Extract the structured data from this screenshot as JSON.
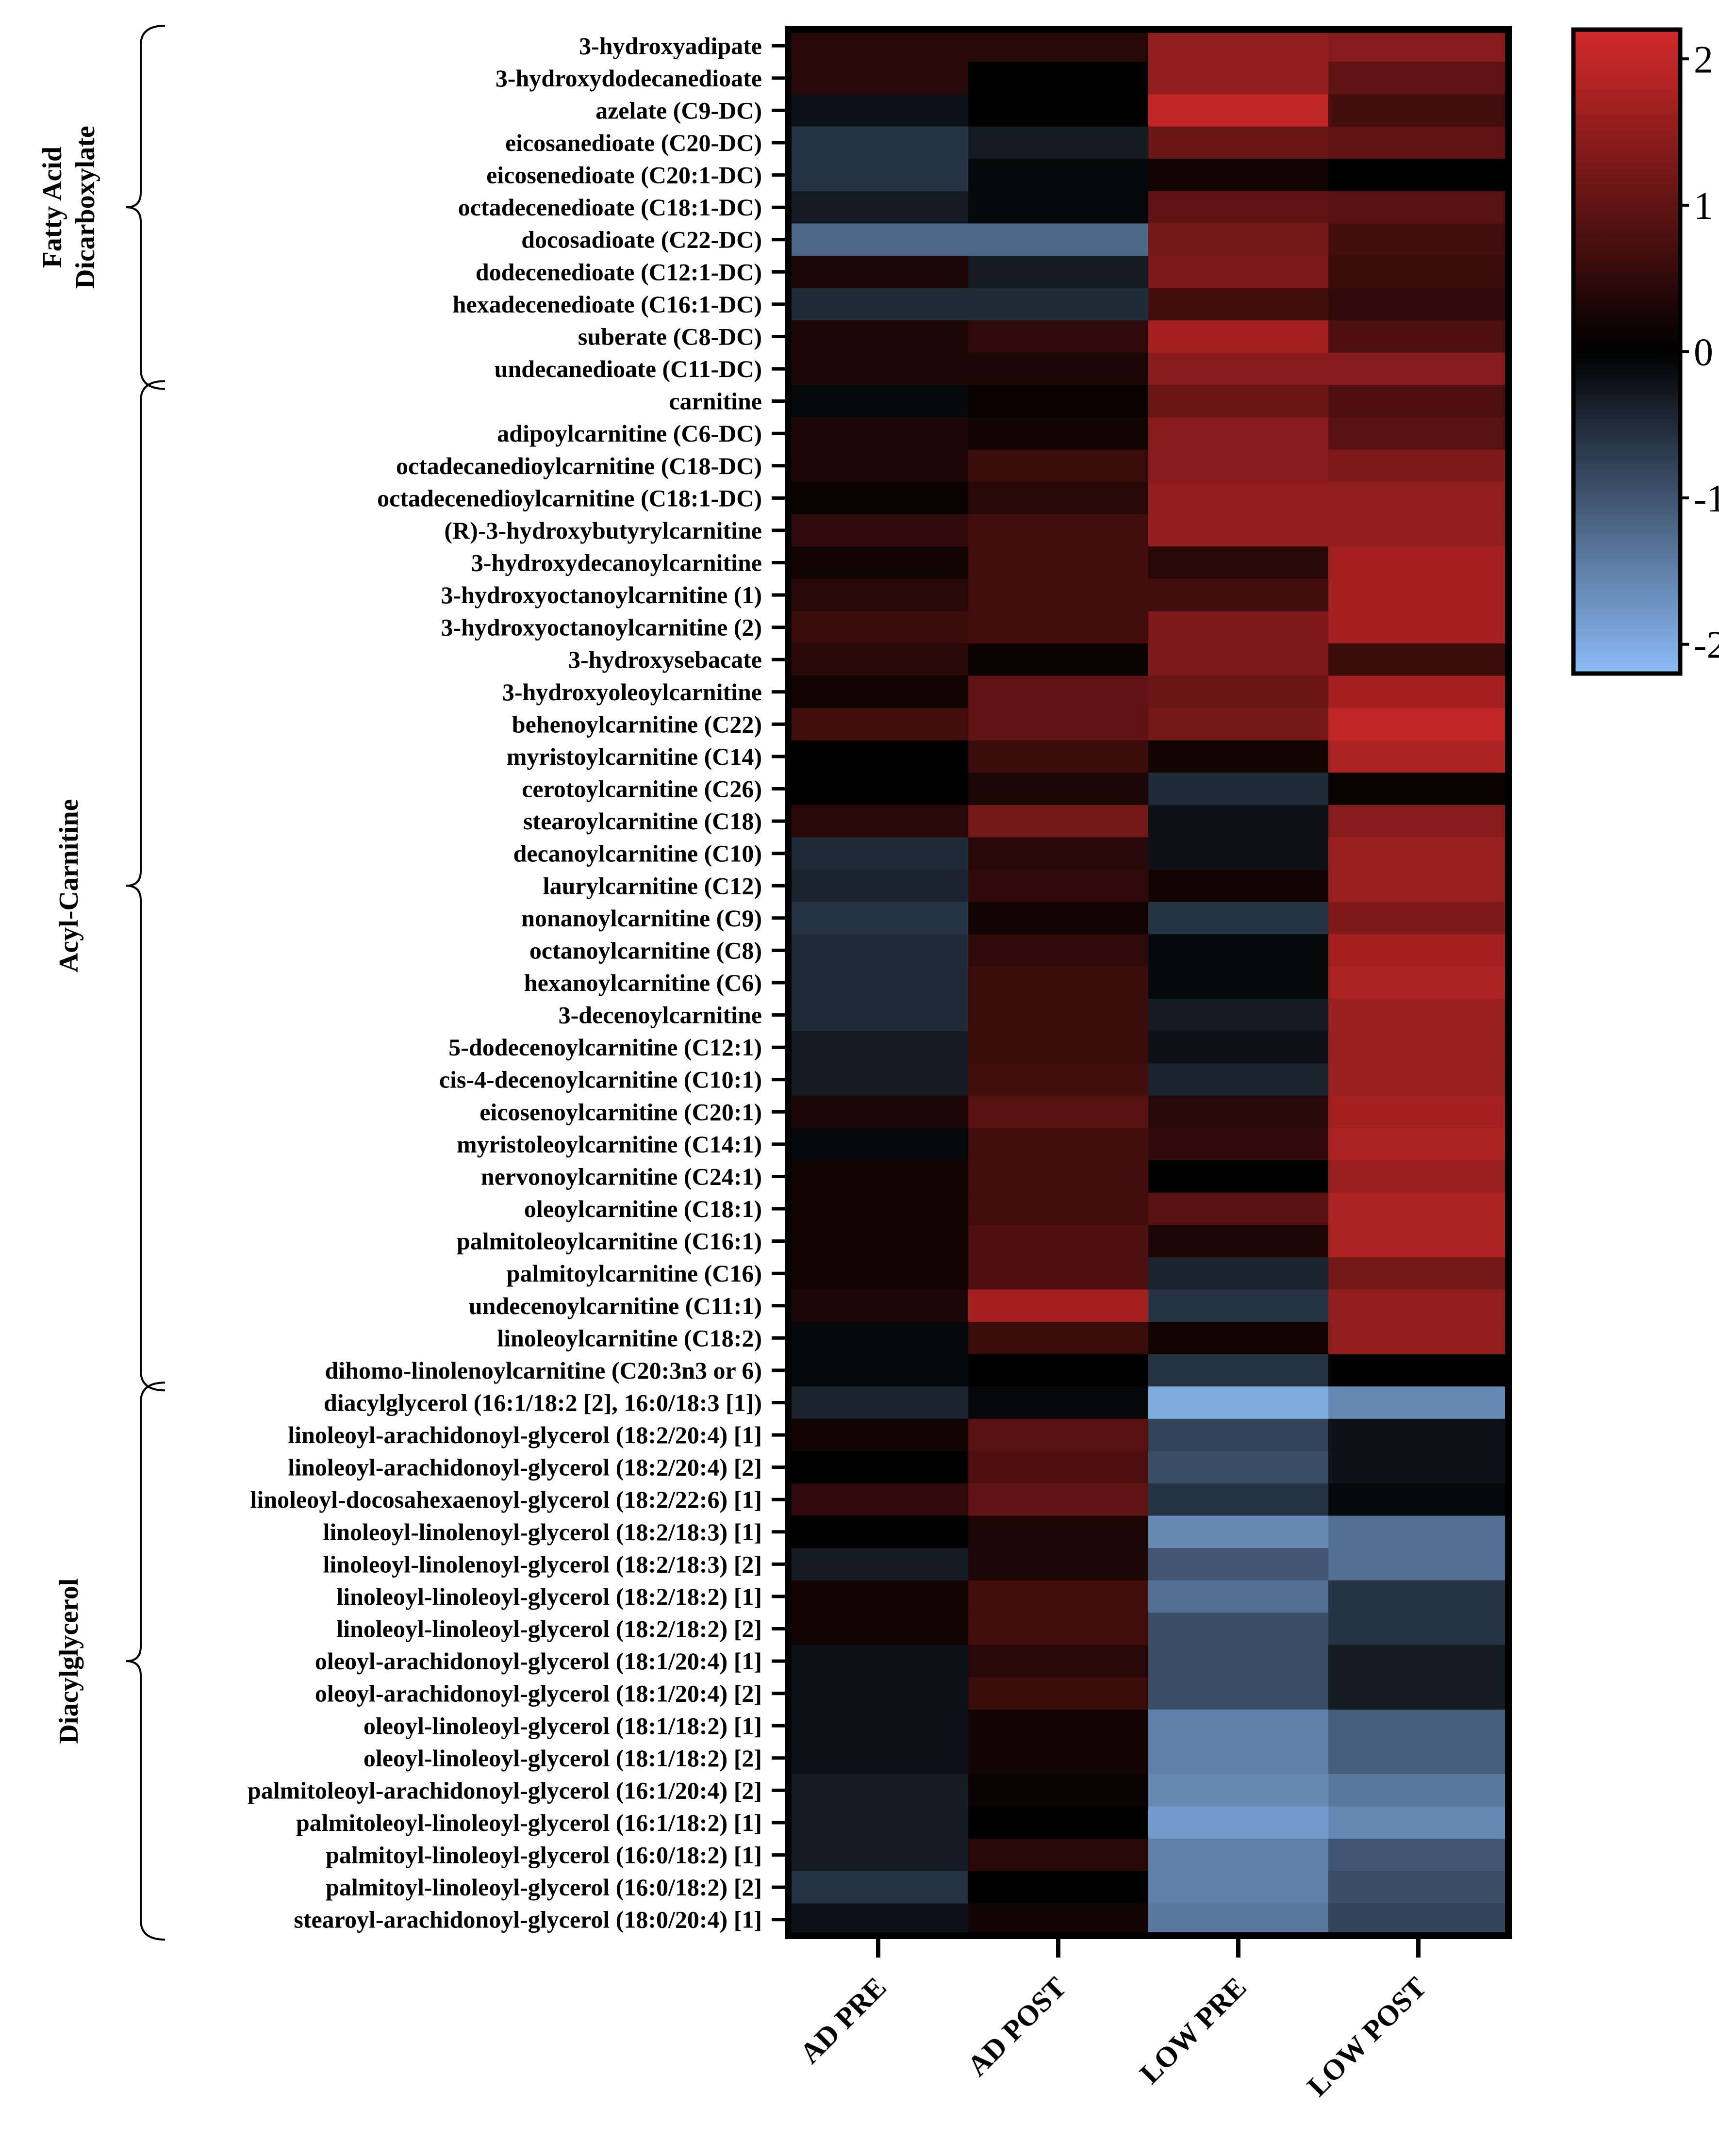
{
  "chart_data": {
    "type": "heatmap",
    "columns": [
      "AD PRE",
      "AD POST",
      "LOW PRE",
      "LOW POST"
    ],
    "rows": [
      "3-hydroxyadipate",
      "3-hydroxydodecanedioate",
      "azelate (C9-DC)",
      "eicosanedioate (C20-DC)",
      "eicosenedioate (C20:1-DC)",
      "octadecenedioate (C18:1-DC)",
      "docosadioate (C22-DC)",
      "dodecenedioate (C12:1-DC)",
      "hexadecenedioate (C16:1-DC)",
      "suberate (C8-DC)",
      "undecanedioate (C11-DC)",
      "carnitine",
      "adipoylcarnitine (C6-DC)",
      "octadecanedioylcarnitine (C18-DC)",
      "octadecenedioylcarnitine (C18:1-DC)",
      "(R)-3-hydroxybutyrylcarnitine",
      "3-hydroxydecanoylcarnitine",
      "3-hydroxyoctanoylcarnitine (1)",
      "3-hydroxyoctanoylcarnitine (2)",
      "3-hydroxysebacate",
      "3-hydroxyoleoylcarnitine",
      "behenoylcarnitine (C22)",
      "myristoylcarnitine (C14)",
      "cerotoylcarnitine (C26)",
      "stearoylcarnitine (C18)",
      "decanoylcarnitine (C10)",
      "laurylcarnitine (C12)",
      "nonanoylcarnitine (C9)",
      "octanoylcarnitine (C8)",
      "hexanoylcarnitine (C6)",
      "3-decenoylcarnitine",
      "5-dodecenoylcarnitine (C12:1)",
      "cis-4-decenoylcarnitine (C10:1)",
      "eicosenoylcarnitine (C20:1)",
      "myristoleoylcarnitine (C14:1)",
      "nervonoylcarnitine (C24:1)",
      "oleoylcarnitine (C18:1)",
      "palmitoleoylcarnitine (C16:1)",
      "palmitoylcarnitine (C16)",
      "undecenoylcarnitine (C11:1)",
      "linoleoylcarnitine (C18:2)",
      "dihomo-linolenoylcarnitine (C20:3n3 or 6)",
      "diacylglycerol (16:1/18:2 [2], 16:0/18:3 [1])",
      "linoleoyl-arachidonoyl-glycerol (18:2/20:4) [1]",
      "linoleoyl-arachidonoyl-glycerol (18:2/20:4) [2]",
      "linoleoyl-docosahexaenoyl-glycerol (18:2/22:6) [1]",
      "linoleoyl-linolenoyl-glycerol (18:2/18:3) [1]",
      "linoleoyl-linolenoyl-glycerol (18:2/18:3) [2]",
      "linoleoyl-linoleoyl-glycerol (18:2/18:2) [1]",
      "linoleoyl-linoleoyl-glycerol (18:2/18:2) [2]",
      "oleoyl-arachidonoyl-glycerol (18:1/20:4) [1]",
      "oleoyl-arachidonoyl-glycerol (18:1/20:4) [2]",
      "oleoyl-linoleoyl-glycerol (18:1/18:2) [1]",
      "oleoyl-linoleoyl-glycerol (18:1/18:2) [2]",
      "palmitoleoyl-arachidonoyl-glycerol (16:1/20:4) [2]",
      "palmitoleoyl-linoleoyl-glycerol (16:1/18:2) [1]",
      "palmitoyl-linoleoyl-glycerol (16:0/18:2) [1]",
      "palmitoyl-linoleoyl-glycerol (16:0/18:2) [2]",
      "stearoyl-arachidonoyl-glycerol (18:0/20:4) [1]"
    ],
    "values": [
      [
        0.4,
        0.4,
        1.5,
        1.4
      ],
      [
        0.4,
        0.0,
        1.5,
        1.0
      ],
      [
        -0.2,
        0.0,
        2.0,
        0.7
      ],
      [
        -0.6,
        -0.3,
        1.1,
        1.0
      ],
      [
        -0.6,
        -0.1,
        0.2,
        0.0
      ],
      [
        -0.3,
        -0.1,
        1.0,
        0.9
      ],
      [
        -1.2,
        -1.2,
        1.2,
        0.7
      ],
      [
        0.3,
        -0.3,
        1.3,
        0.6
      ],
      [
        -0.5,
        -0.5,
        0.7,
        0.5
      ],
      [
        0.3,
        0.5,
        1.7,
        0.8
      ],
      [
        0.3,
        0.3,
        1.4,
        1.4
      ],
      [
        -0.1,
        0.1,
        1.1,
        0.8
      ],
      [
        0.3,
        0.2,
        1.4,
        0.9
      ],
      [
        0.3,
        0.6,
        1.4,
        1.3
      ],
      [
        0.1,
        0.4,
        1.5,
        1.5
      ],
      [
        0.5,
        0.7,
        1.5,
        1.5
      ],
      [
        0.2,
        0.7,
        0.4,
        1.7
      ],
      [
        0.4,
        0.7,
        0.7,
        1.7
      ],
      [
        0.6,
        0.7,
        1.3,
        1.7
      ],
      [
        0.4,
        0.1,
        1.3,
        0.6
      ],
      [
        0.2,
        1.0,
        1.1,
        1.7
      ],
      [
        0.7,
        1.0,
        1.2,
        2.0
      ],
      [
        0.0,
        0.6,
        0.2,
        1.8
      ],
      [
        0.0,
        0.3,
        -0.5,
        0.1
      ],
      [
        0.4,
        1.2,
        -0.2,
        1.4
      ],
      [
        -0.5,
        0.4,
        -0.2,
        1.6
      ],
      [
        -0.4,
        0.5,
        0.2,
        1.6
      ],
      [
        -0.6,
        0.2,
        -0.6,
        1.3
      ],
      [
        -0.5,
        0.5,
        -0.1,
        1.7
      ],
      [
        -0.5,
        0.6,
        -0.1,
        1.8
      ],
      [
        -0.5,
        0.6,
        -0.3,
        1.6
      ],
      [
        -0.3,
        0.6,
        -0.2,
        1.6
      ],
      [
        -0.3,
        0.7,
        -0.4,
        1.6
      ],
      [
        0.3,
        0.9,
        0.4,
        1.7
      ],
      [
        -0.1,
        0.7,
        0.5,
        1.8
      ],
      [
        0.2,
        0.7,
        0.0,
        1.6
      ],
      [
        0.2,
        0.7,
        0.9,
        1.8
      ],
      [
        0.2,
        0.8,
        0.3,
        1.8
      ],
      [
        0.2,
        0.8,
        -0.4,
        1.2
      ],
      [
        0.3,
        1.7,
        -0.6,
        1.5
      ],
      [
        -0.1,
        0.6,
        0.2,
        1.5
      ],
      [
        -0.1,
        0.0,
        -0.6,
        0.0
      ],
      [
        -0.4,
        -0.1,
        -2.0,
        -1.6
      ],
      [
        0.2,
        0.9,
        -0.8,
        -0.2
      ],
      [
        0.0,
        0.8,
        -0.9,
        -0.2
      ],
      [
        0.5,
        1.0,
        -0.6,
        -0.1
      ],
      [
        0.0,
        0.3,
        -1.6,
        -1.3
      ],
      [
        -0.3,
        0.3,
        -1.0,
        -1.3
      ],
      [
        0.2,
        0.7,
        -1.3,
        -0.6
      ],
      [
        0.2,
        0.7,
        -0.9,
        -0.6
      ],
      [
        -0.2,
        0.4,
        -0.9,
        -0.3
      ],
      [
        -0.2,
        0.6,
        -0.9,
        -0.3
      ],
      [
        -0.2,
        0.2,
        -1.5,
        -1.1
      ],
      [
        -0.2,
        0.2,
        -1.5,
        -1.1
      ],
      [
        -0.3,
        0.1,
        -1.6,
        -1.4
      ],
      [
        -0.3,
        0.0,
        -1.8,
        -1.6
      ],
      [
        -0.3,
        0.4,
        -1.5,
        -1.0
      ],
      [
        -0.6,
        0.0,
        -1.5,
        -0.9
      ],
      [
        -0.2,
        0.2,
        -1.4,
        -0.8
      ]
    ],
    "groups": [
      {
        "name": "Fatty Acid Dicarboxylate",
        "lines": [
          "Fatty Acid",
          "Dicarboxylate"
        ],
        "start": 0,
        "end": 10
      },
      {
        "name": "Acyl-Carnitine",
        "lines": [
          "Acyl-Carnitine"
        ],
        "start": 11,
        "end": 41
      },
      {
        "name": "Diacylglycerol",
        "lines": [
          "Diacylglycerol"
        ],
        "start": 42,
        "end": 58
      }
    ],
    "colorbar": {
      "min": -2.2,
      "max": 2.2,
      "ticks": [
        2,
        1,
        0,
        -1,
        -2
      ],
      "tick_labels": [
        "2",
        "1",
        "0",
        "-1",
        "-2"
      ],
      "colors": {
        "neg": "#8cbcf8",
        "mid": "#000000",
        "pos": "#d42a2a"
      }
    }
  }
}
